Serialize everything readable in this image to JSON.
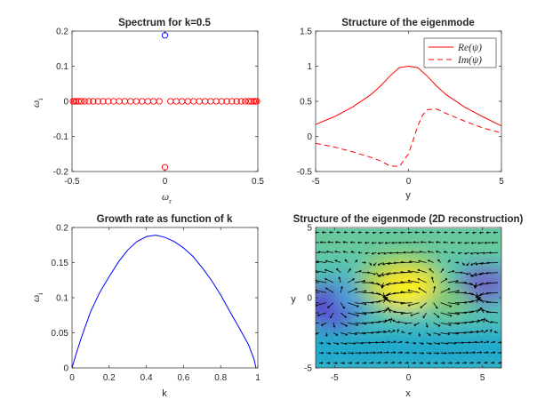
{
  "colors": {
    "circle_red": "#ff0000",
    "circle_blue": "#0000ff",
    "line_blue": "#0000ff",
    "line_red": "#ff0000",
    "axes": "#262626",
    "quiver": "#000000",
    "colormap": [
      "#3e26a8",
      "#2f7fee",
      "#1fb7c2",
      "#8dcb63",
      "#f5d22a",
      "#f9fb0e"
    ]
  },
  "chart_data": [
    {
      "type": "scatter",
      "title": "Spectrum for k=0.5",
      "xlabel": "ω",
      "xlabel_sub": "r",
      "ylabel": "ω",
      "ylabel_sub": "i",
      "xlim": [
        -0.5,
        0.5
      ],
      "ylim": [
        -0.2,
        0.2
      ],
      "xticks": [
        -0.5,
        0,
        0.5
      ],
      "xticklabels": [
        "-0.5",
        "0",
        "0.5"
      ],
      "yticks": [
        -0.2,
        -0.1,
        0,
        0.1,
        0.2
      ],
      "yticklabels": [
        "-0.2",
        "-0.1",
        "0",
        "0.1",
        "0.2"
      ],
      "grid": false,
      "marker": "circle",
      "series": [
        {
          "color": "red",
          "points": [
            [
              -0.495,
              0
            ],
            [
              -0.488,
              0
            ],
            [
              -0.478,
              0
            ],
            [
              -0.465,
              0
            ],
            [
              -0.45,
              0
            ],
            [
              -0.432,
              0
            ],
            [
              -0.41,
              0
            ],
            [
              -0.386,
              0
            ],
            [
              -0.36,
              0
            ],
            [
              -0.333,
              0
            ],
            [
              -0.305,
              0
            ],
            [
              -0.276,
              0
            ],
            [
              -0.246,
              0
            ],
            [
              -0.216,
              0
            ],
            [
              -0.185,
              0
            ],
            [
              -0.154,
              0
            ],
            [
              -0.123,
              0
            ],
            [
              -0.092,
              0
            ],
            [
              -0.061,
              0
            ],
            [
              -0.03,
              0
            ],
            [
              0.03,
              0
            ],
            [
              0.061,
              0
            ],
            [
              0.092,
              0
            ],
            [
              0.123,
              0
            ],
            [
              0.154,
              0
            ],
            [
              0.185,
              0
            ],
            [
              0.216,
              0
            ],
            [
              0.246,
              0
            ],
            [
              0.276,
              0
            ],
            [
              0.305,
              0
            ],
            [
              0.333,
              0
            ],
            [
              0.36,
              0
            ],
            [
              0.386,
              0
            ],
            [
              0.41,
              0
            ],
            [
              0.432,
              0
            ],
            [
              0.45,
              0
            ],
            [
              0.465,
              0
            ],
            [
              0.478,
              0
            ],
            [
              0.488,
              0
            ],
            [
              0.495,
              0
            ],
            [
              0,
              -0.188
            ]
          ]
        },
        {
          "color": "blue",
          "points": [
            [
              0,
              0.188
            ]
          ]
        }
      ]
    },
    {
      "type": "line",
      "title": "Structure of the eigenmode",
      "xlabel": "y",
      "ylabel": "",
      "xlim": [
        -5,
        5
      ],
      "ylim": [
        -0.5,
        1.5
      ],
      "xticks": [
        -5,
        0,
        5
      ],
      "xticklabels": [
        "-5",
        "0",
        "5"
      ],
      "yticks": [
        -0.5,
        0,
        0.5,
        1,
        1.5
      ],
      "yticklabels": [
        "-0.5",
        "0",
        "0.5",
        "1",
        "1.5"
      ],
      "grid": false,
      "legend_position": "top-right",
      "series": [
        {
          "name": "Re(ψ)",
          "color": "red",
          "style": "solid",
          "x": [
            -5,
            -4,
            -3,
            -2,
            -1.5,
            -1,
            -0.5,
            0,
            0.5,
            1,
            1.5,
            2,
            3,
            4,
            5
          ],
          "y": [
            0.17,
            0.28,
            0.42,
            0.6,
            0.72,
            0.86,
            0.98,
            1.0,
            0.98,
            0.86,
            0.72,
            0.6,
            0.42,
            0.28,
            0.15
          ]
        },
        {
          "name": "Im(ψ)",
          "color": "red",
          "style": "dashed",
          "x": [
            -5,
            -4,
            -3,
            -2,
            -1.5,
            -1,
            -0.5,
            0,
            0.25,
            0.5,
            0.75,
            1,
            1.5,
            2,
            3,
            4,
            5
          ],
          "y": [
            -0.1,
            -0.15,
            -0.22,
            -0.3,
            -0.35,
            -0.42,
            -0.43,
            -0.25,
            -0.05,
            0.15,
            0.3,
            0.38,
            0.39,
            0.33,
            0.22,
            0.12,
            0.05
          ]
        }
      ]
    },
    {
      "type": "line",
      "title": "Growth rate as function of k",
      "xlabel": "k",
      "ylabel": "ω",
      "ylabel_sub": "i",
      "xlim": [
        0,
        1
      ],
      "ylim": [
        0,
        0.2
      ],
      "xticks": [
        0,
        0.2,
        0.4,
        0.6,
        0.8,
        1
      ],
      "xticklabels": [
        "0",
        "0.2",
        "0.4",
        "0.6",
        "0.8",
        "1"
      ],
      "yticks": [
        0,
        0.05,
        0.1,
        0.15,
        0.2
      ],
      "yticklabels": [
        "0",
        "0.05",
        "0.1",
        "0.15",
        "0.2"
      ],
      "grid": false,
      "series": [
        {
          "color": "blue",
          "x": [
            0,
            0.02,
            0.05,
            0.1,
            0.15,
            0.2,
            0.25,
            0.3,
            0.35,
            0.4,
            0.45,
            0.5,
            0.55,
            0.6,
            0.65,
            0.7,
            0.75,
            0.8,
            0.85,
            0.9,
            0.95,
            0.98,
            0.99
          ],
          "y": [
            0,
            0.018,
            0.043,
            0.08,
            0.108,
            0.13,
            0.151,
            0.168,
            0.18,
            0.187,
            0.189,
            0.186,
            0.18,
            0.171,
            0.159,
            0.143,
            0.125,
            0.104,
            0.08,
            0.057,
            0.033,
            0.012,
            0
          ]
        }
      ]
    },
    {
      "type": "heatmap",
      "title": "Structure of the eigenmode (2D reconstruction)",
      "xlabel": "x",
      "ylabel": "y",
      "xlim": [
        -6.28,
        6.28
      ],
      "ylim": [
        -5,
        5
      ],
      "xticks": [
        -5,
        0,
        5
      ],
      "xticklabels": [
        "-5",
        "0",
        "5"
      ],
      "yticks": [
        -5,
        0,
        5
      ],
      "yticklabels": [
        "-5",
        "0",
        "5"
      ],
      "overlay": "quiver",
      "colormap": "parula"
    }
  ]
}
